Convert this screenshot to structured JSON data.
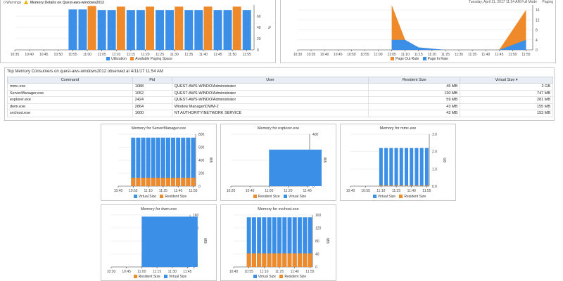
{
  "colors": {
    "blue": "#3c8fe6",
    "orange": "#ee8a2a"
  },
  "top_left": {
    "header_text": "0 Warnings",
    "header_title": "Memory Details on Quest-aws-windows2012",
    "ylabel": "%",
    "y_ticks": [
      "0",
      "20",
      "40",
      "60"
    ],
    "x_ticks": [
      "10:35",
      "10:40",
      "10:45",
      "10:50",
      "10:55",
      "11:00",
      "11:05",
      "11:10",
      "11:15",
      "11:20",
      "11:25",
      "11:30",
      "11:35",
      "11:40",
      "11:45",
      "11:50",
      "11:55"
    ],
    "legend": [
      "Utilization",
      "Available Paging Space"
    ],
    "chart_data": {
      "type": "bar",
      "categories": [
        "10:55",
        "11:00",
        "11:05",
        "11:10",
        "11:15",
        "11:20",
        "11:25",
        "11:30",
        "11:35",
        "11:40",
        "11:45",
        "11:50",
        "11:55"
      ],
      "series": [
        {
          "name": "Utilization",
          "values": [
            72,
            72,
            71,
            71,
            71,
            71,
            71,
            71,
            71,
            71,
            71,
            71,
            71
          ]
        },
        {
          "name": "Available Paging Space",
          "values": [
            null,
            78,
            null,
            77,
            null,
            77,
            null,
            77,
            null,
            77,
            null,
            77,
            null
          ]
        }
      ],
      "ylim": [
        0,
        80
      ]
    }
  },
  "top_right": {
    "header_text": "Tuesday, April 11, 2017 11:54 AM  Full Mode",
    "header_tag": "Paging",
    "y_ticks": [
      "0",
      "4",
      "8",
      "12",
      "16"
    ],
    "x_ticks": [
      "10:30",
      "10:35",
      "10:40",
      "10:45",
      "10:50",
      "10:55",
      "11:00",
      "11:05",
      "11:10",
      "11:15",
      "11:20",
      "11:25",
      "11:30",
      "11:35",
      "11:40",
      "11:45",
      "11:50",
      "11:55"
    ],
    "legend": [
      "Page Out Rate",
      "Page In Rate"
    ],
    "chart_data": {
      "type": "area",
      "x": [
        "11:05",
        "11:10",
        "11:15",
        "11:25",
        "11:45",
        "11:55"
      ],
      "series": [
        {
          "name": "Page Out Rate",
          "values": [
            18,
            4,
            1,
            0,
            0,
            16
          ]
        },
        {
          "name": "Page In Rate",
          "values": [
            4,
            4,
            1,
            0,
            0,
            4
          ]
        }
      ],
      "ylim": [
        0,
        18
      ]
    }
  },
  "table": {
    "caption": "Top Memory Consumers on quest-aws-windows2012 observed at 4/11/17 11:54 AM",
    "columns": [
      "Command",
      "Pid",
      "User",
      "Resident Size",
      "Virtual Size ▾"
    ],
    "rows": [
      [
        "mmc.exe",
        "1088",
        "QUEST-AWS-WINDO\\Administrator",
        "45 MB",
        "2 GB"
      ],
      [
        "ServerManager.exe",
        "1052",
        "QUEST-AWS-WINDO\\Administrator",
        "130 MB",
        "747 MB"
      ],
      [
        "explorer.exe",
        "2424",
        "QUEST-AWS-WINDO\\Administrator",
        "59 MB",
        "281 MB"
      ],
      [
        "dwm.exe",
        "2864",
        "Window Manager\\DWM-2",
        "43 MB",
        "155 MB"
      ],
      [
        "svchost.exe",
        "1600",
        "NT AUTHORITY\\NETWORK SERVICE",
        "42 MB",
        "153 MB"
      ]
    ]
  },
  "mini": [
    {
      "title": "Memory for ServerManager.exe",
      "unit": "MB",
      "y_ticks": [
        "0",
        "200",
        "400",
        "600",
        "800"
      ],
      "x_ticks": [
        "10:40",
        "10:55",
        "11:10",
        "11:25",
        "11:40",
        "11:55"
      ],
      "legend": [
        "Virtual Size",
        "Resident Size"
      ],
      "chart_data": {
        "type": "bar",
        "categories": [
          "10:55",
          "11:00",
          "11:05",
          "11:10",
          "11:15",
          "11:20",
          "11:25",
          "11:30",
          "11:35",
          "11:40",
          "11:45",
          "11:50",
          "11:55"
        ],
        "series": [
          {
            "name": "Virtual Size",
            "values": [
              747,
              747,
              747,
              747,
              747,
              747,
              747,
              747,
              747,
              747,
              747,
              747,
              747
            ]
          },
          {
            "name": "Resident Size",
            "values": [
              130,
              130,
              130,
              130,
              130,
              130,
              130,
              130,
              130,
              130,
              130,
              130,
              130
            ]
          }
        ],
        "ylim": [
          0,
          800
        ]
      }
    },
    {
      "title": "Memory for explorer.exe",
      "unit": "MB",
      "y_ticks": [
        "0",
        "200",
        "400"
      ],
      "x_ticks": [
        "10:20",
        "10:40",
        "11:00",
        "11:20",
        "11:40"
      ],
      "legend": [
        "Resident Size",
        "Virtual Size"
      ],
      "chart_data": {
        "type": "area",
        "x": [
          "11:00",
          "11:55"
        ],
        "series": [
          {
            "name": "Resident Size",
            "values": [
              59,
              59
            ]
          },
          {
            "name": "Virtual Size",
            "values": [
              281,
              281
            ]
          }
        ],
        "ylim": [
          0,
          400
        ]
      }
    },
    {
      "title": "Memory for mmc.exe",
      "unit": "GB",
      "y_ticks": [
        "0.0",
        "1.0",
        "2.0",
        "3.0"
      ],
      "x_ticks": [
        "10:40",
        "10:55",
        "11:10",
        "11:25",
        "11:40",
        "11:55"
      ],
      "legend": [
        "Virtual Size",
        "Resident Size"
      ],
      "chart_data": {
        "type": "bar",
        "categories": [
          "11:10",
          "11:15",
          "11:20",
          "11:25",
          "11:30",
          "11:35",
          "11:40",
          "11:45",
          "11:50",
          "11:55"
        ],
        "series": [
          {
            "name": "Virtual Size",
            "values": [
              2.2,
              2.2,
              2.2,
              2.2,
              2.2,
              2.2,
              2.2,
              2.2,
              2.2,
              2.2
            ]
          },
          {
            "name": "Resident Size",
            "values": [
              0.04,
              0.04,
              0.04,
              0.04,
              0.04,
              0.04,
              0.04,
              0.04,
              0.04,
              0.04
            ]
          }
        ],
        "ylim": [
          0,
          3
        ]
      }
    },
    {
      "title": "Memory for dwm.exe",
      "unit": "MB",
      "y_ticks": [
        "0",
        "40",
        "80",
        "120",
        "160"
      ],
      "x_ticks": [
        "10:30",
        "10:45",
        "11:00",
        "11:15",
        "11:30",
        "11:45"
      ],
      "legend": [
        "Resident Size",
        "Virtual Size"
      ],
      "chart_data": {
        "type": "area",
        "x": [
          "11:00",
          "11:55"
        ],
        "series": [
          {
            "name": "Resident Size",
            "values": [
              43,
              43
            ]
          },
          {
            "name": "Virtual Size",
            "values": [
              155,
              155
            ]
          }
        ],
        "ylim": [
          0,
          160
        ]
      }
    },
    {
      "title": "Memory for svchost.exe",
      "unit": "MB",
      "y_ticks": [
        "0",
        "40",
        "80",
        "120",
        "160"
      ],
      "x_ticks": [
        "10:40",
        "10:55",
        "11:10",
        "11:25",
        "11:40",
        "11:55"
      ],
      "legend": [
        "Virtual Size",
        "Resident Size"
      ],
      "chart_data": {
        "type": "bar",
        "categories": [
          "10:55",
          "11:00",
          "11:05",
          "11:10",
          "11:15",
          "11:20",
          "11:25",
          "11:30",
          "11:35",
          "11:40",
          "11:45",
          "11:50",
          "11:55"
        ],
        "series": [
          {
            "name": "Virtual Size",
            "values": [
              153,
              153,
              153,
              153,
              153,
              153,
              153,
              153,
              153,
              153,
              153,
              153,
              153
            ]
          },
          {
            "name": "Resident Size",
            "values": [
              42,
              42,
              42,
              42,
              42,
              42,
              42,
              42,
              42,
              42,
              42,
              42,
              42
            ]
          }
        ],
        "ylim": [
          0,
          160
        ]
      }
    }
  ]
}
